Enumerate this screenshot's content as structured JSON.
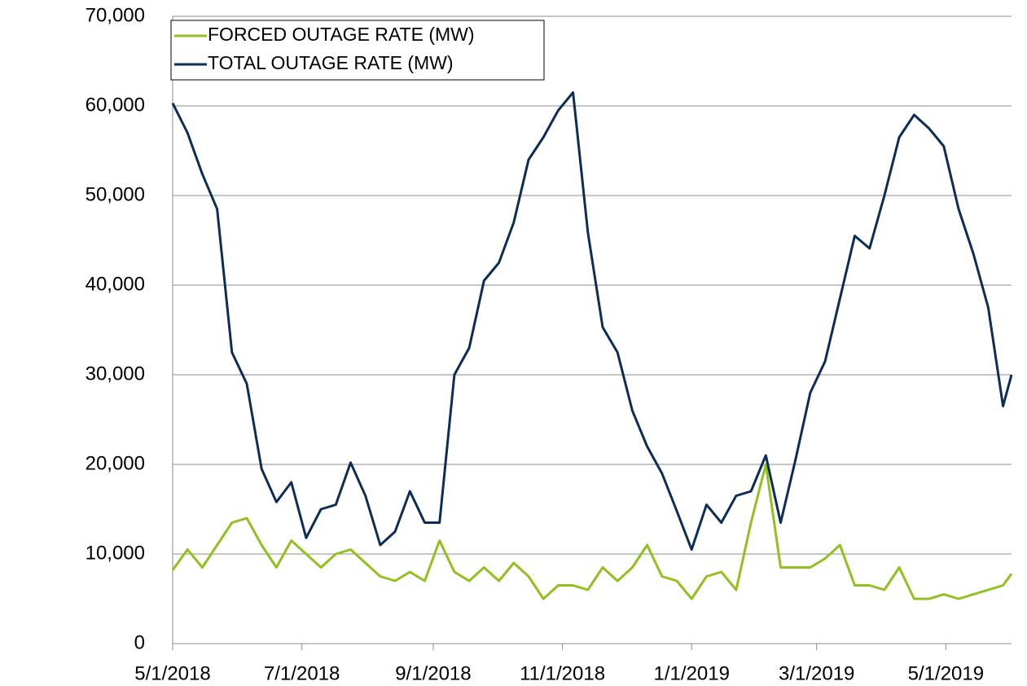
{
  "chart_data": {
    "type": "line",
    "x": [
      "5/1/2018",
      "5/8/2018",
      "5/15/2018",
      "5/22/2018",
      "5/29/2018",
      "6/5/2018",
      "6/12/2018",
      "6/19/2018",
      "6/26/2018",
      "7/3/2018",
      "7/10/2018",
      "7/17/2018",
      "7/24/2018",
      "7/31/2018",
      "8/7/2018",
      "8/14/2018",
      "8/21/2018",
      "8/28/2018",
      "9/4/2018",
      "9/11/2018",
      "9/18/2018",
      "9/25/2018",
      "10/2/2018",
      "10/9/2018",
      "10/16/2018",
      "10/23/2018",
      "10/30/2018",
      "11/6/2018",
      "11/13/2018",
      "11/20/2018",
      "11/27/2018",
      "12/4/2018",
      "12/11/2018",
      "12/18/2018",
      "12/25/2018",
      "1/1/2019",
      "1/8/2019",
      "1/15/2019",
      "1/22/2019",
      "1/29/2019",
      "2/5/2019",
      "2/12/2019",
      "2/19/2019",
      "2/26/2019",
      "3/5/2019",
      "3/12/2019",
      "3/19/2019",
      "3/26/2019",
      "4/2/2019",
      "4/9/2019",
      "4/16/2019",
      "4/23/2019",
      "4/30/2019",
      "5/7/2019",
      "5/14/2019",
      "5/21/2019",
      "5/28/2019",
      "6/1/2019"
    ],
    "series": [
      {
        "name": "FORCED OUTAGE RATE (MW)",
        "color": "#92c01f",
        "values": [
          8200,
          10500,
          8500,
          11000,
          13500,
          14000,
          11000,
          8500,
          11500,
          10000,
          8500,
          10000,
          10500,
          9000,
          7500,
          7000,
          8000,
          7000,
          11500,
          8000,
          7000,
          8500,
          7000,
          9000,
          7500,
          5000,
          6500,
          6500,
          6000,
          8500,
          7000,
          8500,
          11000,
          7500,
          7000,
          5000,
          7500,
          8000,
          6000,
          13500,
          20000,
          8500,
          8500,
          8500,
          9500,
          11000,
          6500,
          6500,
          6000,
          8500,
          5000,
          5000,
          5500,
          5000,
          5500,
          6000,
          6500,
          7800
        ]
      },
      {
        "name": "TOTAL OUTAGE RATE (MW)",
        "color": "#0c2d57",
        "values": [
          60300,
          57000,
          52400,
          48500,
          32500,
          29000,
          19500,
          15800,
          18000,
          11800,
          15000,
          15500,
          20200,
          16500,
          11000,
          12500,
          17000,
          13500,
          13500,
          30000,
          33000,
          40500,
          42500,
          47000,
          54000,
          56500,
          59500,
          61500,
          45900,
          35300,
          32500,
          26000,
          22000,
          19000,
          14800,
          10500,
          15500,
          13500,
          16500,
          17000,
          21000,
          13500,
          20500,
          28000,
          31500,
          38500,
          45500,
          44100,
          50000,
          56500,
          59000,
          57500,
          55500,
          48500,
          43500,
          37500,
          26500,
          30000
        ]
      }
    ],
    "xlim": [
      "5/1/2018",
      "6/1/2019"
    ],
    "xticks": [
      "5/1/2018",
      "7/1/2018",
      "9/1/2018",
      "11/1/2018",
      "1/1/2019",
      "3/1/2019",
      "5/1/2019"
    ],
    "ylim": [
      0,
      70000
    ],
    "yticks": [
      0,
      {
        "value": 10000,
        "label": "10,000"
      },
      {
        "value": 20000,
        "label": "20,000"
      },
      {
        "value": 30000,
        "label": "30,000"
      },
      {
        "value": 40000,
        "label": "40,000"
      },
      {
        "value": 50000,
        "label": "50,000"
      },
      {
        "value": 60000,
        "label": "60,000"
      },
      {
        "value": 70000,
        "label": "70,000"
      }
    ],
    "grid": true,
    "legend": "top-left"
  }
}
